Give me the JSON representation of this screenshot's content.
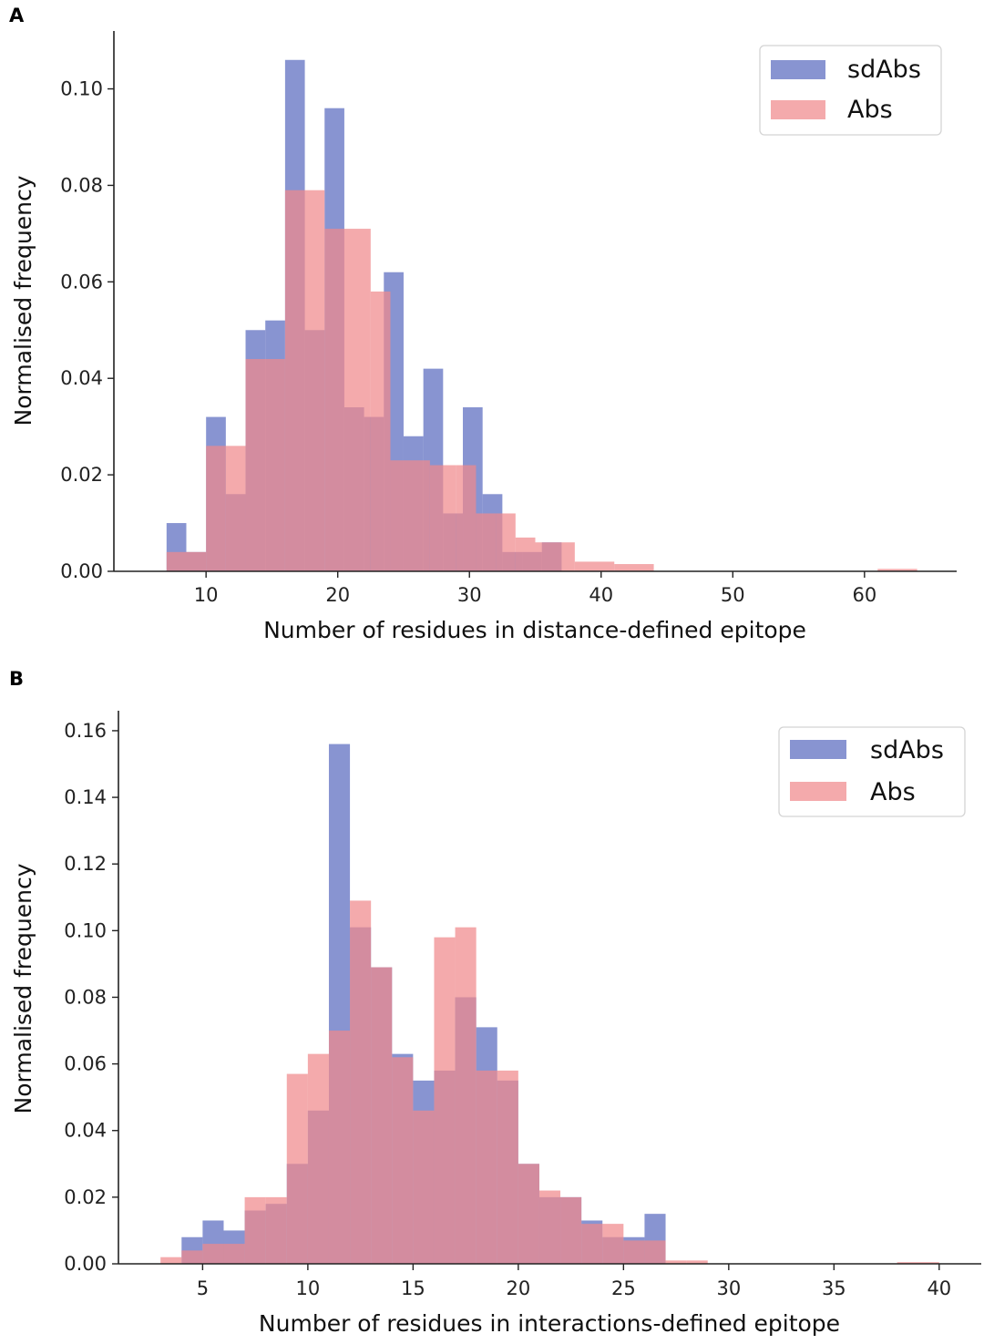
{
  "colors": {
    "sdAbs": "#5a6bbf",
    "Abs": "#f0898c",
    "alpha": 0.72
  },
  "chart_data": [
    {
      "panel": "A",
      "type": "bar",
      "histogram": true,
      "xlabel": "Number of residues in distance-defined epitope",
      "ylabel": "Normalised frequency",
      "xlim": [
        3,
        67
      ],
      "ylim": [
        0,
        0.112
      ],
      "xticks": [
        "10",
        "20",
        "30",
        "40",
        "50",
        "60"
      ],
      "yticks": [
        "0.00",
        "0.02",
        "0.04",
        "0.06",
        "0.08",
        "0.10"
      ],
      "legend_position": "top-right",
      "series": [
        {
          "name": "sdAbs",
          "bins": [
            [
              7,
              8.5,
              0.01
            ],
            [
              8.5,
              10,
              0.004
            ],
            [
              10,
              11.5,
              0.032
            ],
            [
              11.5,
              13,
              0.016
            ],
            [
              13,
              14.5,
              0.05
            ],
            [
              14.5,
              16,
              0.052
            ],
            [
              16,
              17.5,
              0.106
            ],
            [
              17.5,
              19,
              0.05
            ],
            [
              19,
              20.5,
              0.096
            ],
            [
              20.5,
              22,
              0.034
            ],
            [
              22,
              23.5,
              0.032
            ],
            [
              23.5,
              25,
              0.062
            ],
            [
              25,
              26.5,
              0.028
            ],
            [
              26.5,
              28,
              0.042
            ],
            [
              28,
              29.5,
              0.012
            ],
            [
              29.5,
              31,
              0.034
            ],
            [
              31,
              32.5,
              0.016
            ],
            [
              32.5,
              34,
              0.004
            ],
            [
              34,
              35.5,
              0.004
            ],
            [
              35.5,
              37,
              0.006
            ]
          ]
        },
        {
          "name": "Abs",
          "bins": [
            [
              7,
              10,
              0.004
            ],
            [
              10,
              11.5,
              0.026
            ],
            [
              11.5,
              13,
              0.026
            ],
            [
              13,
              16,
              0.044
            ],
            [
              16,
              19,
              0.079
            ],
            [
              19,
              22.5,
              0.071
            ],
            [
              22.5,
              24,
              0.058
            ],
            [
              24,
              27,
              0.023
            ],
            [
              27,
              29,
              0.022
            ],
            [
              29,
              30.5,
              0.022
            ],
            [
              30.5,
              32,
              0.012
            ],
            [
              32,
              33.5,
              0.012
            ],
            [
              33.5,
              35,
              0.007
            ],
            [
              35,
              38,
              0.006
            ],
            [
              38,
              41,
              0.002
            ],
            [
              41,
              44,
              0.0015
            ],
            [
              61,
              64,
              0.0005
            ]
          ]
        }
      ]
    },
    {
      "panel": "B",
      "type": "bar",
      "histogram": true,
      "xlabel": "Number of residues in interactions-defined epitope",
      "ylabel": "Normalised frequency",
      "xlim": [
        1,
        42
      ],
      "ylim": [
        0,
        0.166
      ],
      "xticks": [
        "5",
        "10",
        "15",
        "20",
        "25",
        "30",
        "35",
        "40"
      ],
      "yticks": [
        "0.00",
        "0.02",
        "0.04",
        "0.06",
        "0.08",
        "0.10",
        "0.12",
        "0.14",
        "0.16"
      ],
      "legend_position": "top-right",
      "series": [
        {
          "name": "sdAbs",
          "bins": [
            [
              4,
              5,
              0.008
            ],
            [
              5,
              6,
              0.013
            ],
            [
              6,
              7,
              0.01
            ],
            [
              7,
              8,
              0.016
            ],
            [
              8,
              9,
              0.018
            ],
            [
              9,
              10,
              0.03
            ],
            [
              10,
              11,
              0.046
            ],
            [
              11,
              12,
              0.156
            ],
            [
              12,
              13,
              0.101
            ],
            [
              13,
              14,
              0.089
            ],
            [
              14,
              15,
              0.063
            ],
            [
              15,
              16,
              0.055
            ],
            [
              16,
              17,
              0.058
            ],
            [
              17,
              18,
              0.08
            ],
            [
              18,
              19,
              0.071
            ],
            [
              19,
              20,
              0.055
            ],
            [
              20,
              21,
              0.03
            ],
            [
              21,
              22,
              0.02
            ],
            [
              22,
              23,
              0.02
            ],
            [
              23,
              24,
              0.013
            ],
            [
              24,
              25,
              0.008
            ],
            [
              25,
              26,
              0.008
            ],
            [
              26,
              27,
              0.015
            ]
          ]
        },
        {
          "name": "Abs",
          "bins": [
            [
              3,
              4,
              0.002
            ],
            [
              4,
              5,
              0.004
            ],
            [
              5,
              6,
              0.006
            ],
            [
              6,
              7,
              0.006
            ],
            [
              7,
              8,
              0.02
            ],
            [
              8,
              9,
              0.02
            ],
            [
              9,
              10,
              0.057
            ],
            [
              10,
              11,
              0.063
            ],
            [
              11,
              12,
              0.07
            ],
            [
              12,
              13,
              0.109
            ],
            [
              13,
              14,
              0.089
            ],
            [
              14,
              15,
              0.062
            ],
            [
              15,
              16,
              0.046
            ],
            [
              16,
              17,
              0.098
            ],
            [
              17,
              18,
              0.101
            ],
            [
              18,
              19,
              0.058
            ],
            [
              19,
              20,
              0.058
            ],
            [
              20,
              21,
              0.03
            ],
            [
              21,
              22,
              0.022
            ],
            [
              22,
              23,
              0.02
            ],
            [
              23,
              24,
              0.012
            ],
            [
              24,
              25,
              0.012
            ],
            [
              25,
              26,
              0.007
            ],
            [
              26,
              27,
              0.007
            ],
            [
              27,
              28,
              0.001
            ],
            [
              28,
              29,
              0.001
            ],
            [
              38,
              40,
              0.0005
            ]
          ]
        }
      ]
    }
  ]
}
